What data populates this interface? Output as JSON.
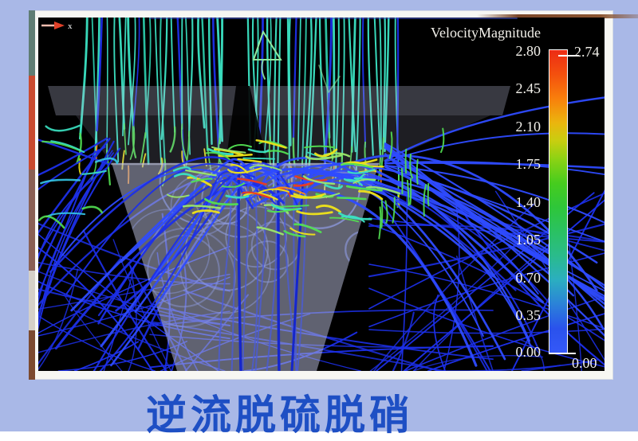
{
  "window": {
    "background_color": "#a9b8e7",
    "frame_color": "#f7f7f3",
    "side_strip_colors": [
      "#5f7d74",
      "#c94a2f",
      "#8a6055",
      "#d5d0c8",
      "#7c4a30"
    ]
  },
  "caption": {
    "text": "逆流脱硫脱硝",
    "color": "#1e4fc4"
  },
  "legend": {
    "title": "VelocityMagnitude",
    "text_color": "#f2f0ea",
    "ticks": [
      "2.80",
      "2.45",
      "2.10",
      "1.75",
      "1.40",
      "1.05",
      "0.70",
      "0.35",
      "0.00"
    ],
    "max_marker": "2.74",
    "min_marker": "0.00",
    "colorbar_stops": [
      [
        0,
        "#EC2C14"
      ],
      [
        8,
        "#F4500E"
      ],
      [
        16,
        "#F87F0C"
      ],
      [
        24,
        "#EBB50E"
      ],
      [
        30,
        "#C8CE10"
      ],
      [
        36,
        "#8CD214"
      ],
      [
        44,
        "#46CC1E"
      ],
      [
        52,
        "#2EC63A"
      ],
      [
        60,
        "#2AC162"
      ],
      [
        68,
        "#2ABB8C"
      ],
      [
        76,
        "#2BAEC0"
      ],
      [
        84,
        "#2B82D8"
      ],
      [
        92,
        "#2A52EC"
      ],
      [
        100,
        "#3458F8"
      ]
    ]
  },
  "axis_marker": {
    "label": "x",
    "arrow_color": "#e04028",
    "tail_color": "#f2bdae",
    "label_color": "#ffffff"
  },
  "visualization": {
    "background": "#000000",
    "palette": {
      "teal": "#3BE3C3",
      "teal2": "#2BC9A9",
      "green": "#52E052",
      "green2": "#9BE86A",
      "yellow": "#F0E418",
      "orange": "#FF8C12",
      "red": "#F03A1C",
      "blue": "#1C2FE8",
      "blue2": "#2E4BFF",
      "blueDeep": "#1526CC",
      "indigo": "#4A5BD8",
      "peri": "#8E9BE0",
      "cyan": "#35C8E8",
      "vessel": "#B9BCD8",
      "wireframe": "#8FE8A0"
    }
  },
  "chart_data": {
    "type": "heatmap",
    "title": "VelocityMagnitude",
    "colorbar_tick_values": [
      2.8,
      2.45,
      2.1,
      1.75,
      1.4,
      1.05,
      0.7,
      0.35,
      0.0
    ],
    "range": [
      0.0,
      2.8
    ],
    "data_max": 2.74,
    "data_min": 0.0,
    "legend_position": "right",
    "caption": "逆流脱硫脱硝",
    "axis_annotation": "x"
  }
}
